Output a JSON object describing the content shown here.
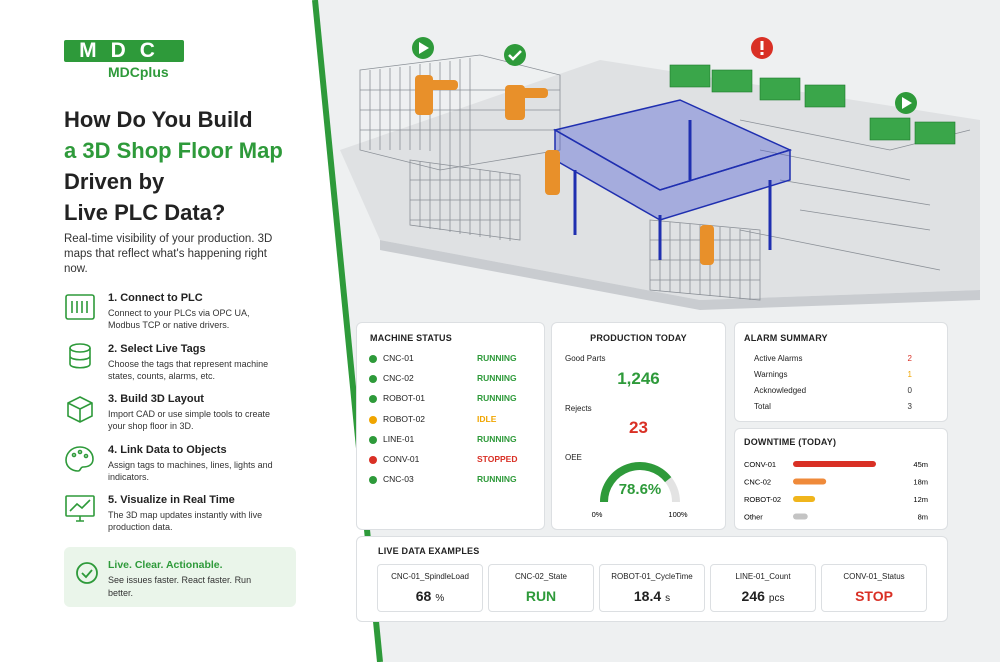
{
  "logo": {
    "mark": "MDC",
    "name": "MDCplus"
  },
  "headline": {
    "lines": [
      "How Do You Build",
      "a 3D Shop Floor Map",
      "Driven by",
      "Live PLC Data?"
    ]
  },
  "intro": "Real-time visibility of your production. 3D maps that reflect what's happening right now.",
  "steps": [
    {
      "title": "1. Connect to PLC",
      "text": "Connect to your PLCs via OPC UA, Modbus TCP or native drivers."
    },
    {
      "title": "2. Select Live Tags",
      "text": "Choose the tags that represent machine states, counts, alarms, etc."
    },
    {
      "title": "3. Build 3D Layout",
      "text": "Import CAD or use simple tools to create your shop floor in 3D."
    },
    {
      "title": "4. Link Data to Objects",
      "text": "Assign tags to machines, lines, lights and indicators."
    },
    {
      "title": "5. Visualize in Real Time",
      "text": "The 3D map updates instantly with live production data."
    }
  ],
  "callout": {
    "title": "Live. Clear. Actionable.",
    "text": "See issues faster. React faster. Run better."
  },
  "machine_status": {
    "title": "MACHINE STATUS",
    "rows": [
      {
        "machine": "CNC-01",
        "status": "RUNNING",
        "color": "#2e9a3a"
      },
      {
        "machine": "CNC-02",
        "status": "RUNNING",
        "color": "#2e9a3a"
      },
      {
        "machine": "ROBOT-01",
        "status": "RUNNING",
        "color": "#2e9a3a"
      },
      {
        "machine": "ROBOT-02",
        "status": "IDLE",
        "color": "#f0a500"
      },
      {
        "machine": "LINE-01",
        "status": "RUNNING",
        "color": "#2e9a3a"
      },
      {
        "machine": "CONV-01",
        "status": "STOPPED",
        "color": "#d93025"
      },
      {
        "machine": "CNC-03",
        "status": "RUNNING",
        "color": "#2e9a3a"
      }
    ]
  },
  "production_today": {
    "title": "PRODUCTION TODAY",
    "good_parts_label": "Good Parts",
    "good_parts": "1,246",
    "rejects_label": "Rejects",
    "rejects": "23",
    "oee_label": "OEE",
    "oee": {
      "value": 78.6,
      "label": "78.6%",
      "color": "#2e9a3a",
      "range": [
        {
          "value": 0,
          "label": "0%"
        },
        {
          "value": 100,
          "label": "100%"
        }
      ]
    }
  },
  "alarm_summary": {
    "title": "ALARM SUMMARY",
    "rows": [
      {
        "label": "Active Alarms",
        "value": "2",
        "color": "#d93025"
      },
      {
        "label": "Warnings",
        "value": "1",
        "color": "#f0a500"
      },
      {
        "label": "Acknowledged",
        "value": "0",
        "color": "#333333"
      },
      {
        "label": "Total",
        "value": "3",
        "color": "#333333"
      }
    ]
  },
  "downtime": {
    "title": "DOWNTIME (TODAY)",
    "machines": [
      "CONV-01",
      "CNC-02",
      "ROBOT-02",
      "Other"
    ],
    "values": [
      45,
      18,
      12,
      8
    ],
    "value_labels": [
      "45m",
      "18m",
      "12m",
      "8m"
    ],
    "colors": [
      "#d93025",
      "#ef8a3a",
      "#f0b51c",
      "#c4c4c4"
    ]
  },
  "live_data": {
    "title": "LIVE DATA EXAMPLES",
    "items": [
      {
        "tag": "CNC-01_SpindleLoad",
        "value": "68",
        "unit": "%",
        "color": "#222222"
      },
      {
        "tag": "CNC-02_State",
        "value": "RUN",
        "color": "#2e9a3a"
      },
      {
        "tag": "ROBOT-01_CycleTime",
        "value": "18.4",
        "unit": "s",
        "color": "#222222"
      },
      {
        "tag": "LINE-01_Count",
        "value": "246",
        "unit": "pcs",
        "color": "#222222"
      },
      {
        "tag": "CONV-01_Status",
        "value": "STOP",
        "color": "#d93025"
      }
    ]
  }
}
